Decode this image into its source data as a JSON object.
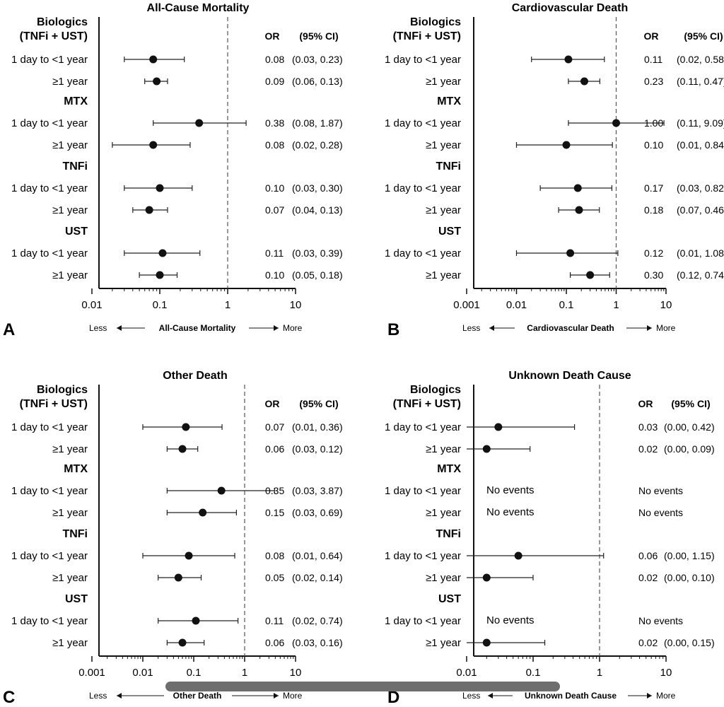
{
  "chart_data": [
    {
      "type": "forest",
      "panel_letter": "A",
      "title": "All-Cause Mortality",
      "xlabel": "All-Cause Mortality",
      "x_left_label": "Less",
      "x_right_label": "More",
      "x_scale": "log",
      "xlim": [
        0.01,
        10
      ],
      "x_ticks": [
        "0.01",
        "0.1",
        "1",
        "10"
      ],
      "reference_line": 1,
      "col_or": "OR",
      "col_ci": "(95% CI)",
      "groups": [
        {
          "name": "Biologics\n(TNFi + UST)",
          "rows": [
            {
              "label": "1 day to <1 year",
              "or": 0.08,
              "lo": 0.03,
              "hi": 0.23,
              "or_text": "0.08",
              "ci_text": "(0.03, 0.23)"
            },
            {
              "label": "≥1 year",
              "or": 0.09,
              "lo": 0.06,
              "hi": 0.13,
              "or_text": "0.09",
              "ci_text": "(0.06, 0.13)"
            }
          ]
        },
        {
          "name": "MTX",
          "rows": [
            {
              "label": "1 day to <1 year",
              "or": 0.38,
              "lo": 0.08,
              "hi": 1.87,
              "or_text": "0.38",
              "ci_text": "(0.08, 1.87)"
            },
            {
              "label": "≥1 year",
              "or": 0.08,
              "lo": 0.02,
              "hi": 0.28,
              "or_text": "0.08",
              "ci_text": "(0.02, 0.28)"
            }
          ]
        },
        {
          "name": "TNFi",
          "rows": [
            {
              "label": "1 day to <1 year",
              "or": 0.1,
              "lo": 0.03,
              "hi": 0.3,
              "or_text": "0.10",
              "ci_text": "(0.03, 0.30)"
            },
            {
              "label": "≥1 year",
              "or": 0.07,
              "lo": 0.04,
              "hi": 0.13,
              "or_text": "0.07",
              "ci_text": "(0.04, 0.13)"
            }
          ]
        },
        {
          "name": "UST",
          "rows": [
            {
              "label": "1 day to <1 year",
              "or": 0.11,
              "lo": 0.03,
              "hi": 0.39,
              "or_text": "0.11",
              "ci_text": "(0.03, 0.39)"
            },
            {
              "label": "≥1 year",
              "or": 0.1,
              "lo": 0.05,
              "hi": 0.18,
              "or_text": "0.10",
              "ci_text": "(0.05, 0.18)"
            }
          ]
        }
      ]
    },
    {
      "type": "forest",
      "panel_letter": "B",
      "title": "Cardiovascular Death",
      "xlabel": "Cardiovascular Death",
      "x_left_label": "Less",
      "x_right_label": "More",
      "x_scale": "log",
      "xlim": [
        0.001,
        10
      ],
      "x_ticks": [
        "0.001",
        "0.01",
        "0.1",
        "1",
        "10"
      ],
      "reference_line": 1,
      "col_or": "OR",
      "col_ci": "(95% CI)",
      "groups": [
        {
          "name": "Biologics\n(TNFi + UST)",
          "rows": [
            {
              "label": "1 day to <1 year",
              "or": 0.11,
              "lo": 0.02,
              "hi": 0.58,
              "or_text": "0.11",
              "ci_text": "(0.02, 0.58"
            },
            {
              "label": "≥1 year",
              "or": 0.23,
              "lo": 0.11,
              "hi": 0.47,
              "or_text": "0.23",
              "ci_text": "(0.11, 0.47)"
            }
          ]
        },
        {
          "name": "MTX",
          "rows": [
            {
              "label": "1 day to <1 year",
              "or": 1.0,
              "lo": 0.11,
              "hi": 9.09,
              "or_text": "1.00",
              "ci_text": "(0.11, 9.09)"
            },
            {
              "label": "≥1 year",
              "or": 0.1,
              "lo": 0.01,
              "hi": 0.84,
              "or_text": "0.10",
              "ci_text": "(0.01, 0.84)"
            }
          ]
        },
        {
          "name": "TNFi",
          "rows": [
            {
              "label": "1 day to <1 year",
              "or": 0.17,
              "lo": 0.03,
              "hi": 0.82,
              "or_text": "0.17",
              "ci_text": "(0.03, 0.82"
            },
            {
              "label": "≥1 year",
              "or": 0.18,
              "lo": 0.07,
              "hi": 0.46,
              "or_text": "0.18",
              "ci_text": "(0.07, 0.46)"
            }
          ]
        },
        {
          "name": "UST",
          "rows": [
            {
              "label": "1 day to <1 year",
              "or": 0.12,
              "lo": 0.01,
              "hi": 1.08,
              "or_text": "0.12",
              "ci_text": "(0.01, 1.08)"
            },
            {
              "label": "≥1 year",
              "or": 0.3,
              "lo": 0.12,
              "hi": 0.74,
              "or_text": "0.30",
              "ci_text": "(0.12, 0.74)"
            }
          ]
        }
      ]
    },
    {
      "type": "forest",
      "panel_letter": "C",
      "title": "Other Death",
      "xlabel": "Other Death",
      "x_left_label": "Less",
      "x_right_label": "More",
      "x_scale": "log",
      "xlim": [
        0.001,
        10
      ],
      "x_ticks": [
        "0.001",
        "0.01",
        "0.1",
        "1",
        "10"
      ],
      "reference_line": 1,
      "col_or": "OR",
      "col_ci": "(95% CI)",
      "groups": [
        {
          "name": "Biologics\n(TNFi + UST)",
          "rows": [
            {
              "label": "1 day to <1 year",
              "or": 0.07,
              "lo": 0.01,
              "hi": 0.36,
              "or_text": "0.07",
              "ci_text": "(0.01, 0.36)"
            },
            {
              "label": "≥1 year",
              "or": 0.06,
              "lo": 0.03,
              "hi": 0.12,
              "or_text": "0.06",
              "ci_text": "(0.03, 0.12)"
            }
          ]
        },
        {
          "name": "MTX",
          "rows": [
            {
              "label": "1 day to <1 year",
              "or": 0.35,
              "lo": 0.03,
              "hi": 3.87,
              "or_text": "0.35",
              "ci_text": "(0.03, 3.87)"
            },
            {
              "label": "≥1 year",
              "or": 0.15,
              "lo": 0.03,
              "hi": 0.69,
              "or_text": "0.15",
              "ci_text": "(0.03, 0.69)"
            }
          ]
        },
        {
          "name": "TNFi",
          "rows": [
            {
              "label": "1 day to <1 year",
              "or": 0.08,
              "lo": 0.01,
              "hi": 0.64,
              "or_text": "0.08",
              "ci_text": "(0.01, 0.64)"
            },
            {
              "label": "≥1 year",
              "or": 0.05,
              "lo": 0.02,
              "hi": 0.14,
              "or_text": "0.05",
              "ci_text": "(0.02, 0.14)"
            }
          ]
        },
        {
          "name": "UST",
          "rows": [
            {
              "label": "1 day to <1 year",
              "or": 0.11,
              "lo": 0.02,
              "hi": 0.74,
              "or_text": "0.11",
              "ci_text": "(0.02, 0.74)"
            },
            {
              "label": "≥1 year",
              "or": 0.06,
              "lo": 0.03,
              "hi": 0.16,
              "or_text": "0.06",
              "ci_text": "(0.03, 0.16)"
            }
          ]
        }
      ]
    },
    {
      "type": "forest",
      "panel_letter": "D",
      "title": "Unknown Death Cause",
      "xlabel": "Unknown Death Cause",
      "x_left_label": "Less",
      "x_right_label": "More",
      "x_scale": "log",
      "xlim": [
        0.01,
        10
      ],
      "x_ticks": [
        "0.01",
        "0.1",
        "1",
        "10"
      ],
      "reference_line": 1,
      "col_or": "OR",
      "col_ci": "(95% CI)",
      "groups": [
        {
          "name": "Biologics\n(TNFi + UST)",
          "rows": [
            {
              "label": "1 day to <1 year",
              "or": 0.03,
              "lo": 0.0,
              "hi": 0.42,
              "or_text": "0.03",
              "ci_text": "(0.00, 0.42)"
            },
            {
              "label": "≥1 year",
              "or": 0.02,
              "lo": 0.0,
              "hi": 0.09,
              "or_text": "0.02",
              "ci_text": "(0.00, 0.09)"
            }
          ]
        },
        {
          "name": "MTX",
          "rows": [
            {
              "label": "1 day to <1 year",
              "no_events": "No events",
              "or_text": "No events",
              "ci_text": ""
            },
            {
              "label": "≥1 year",
              "no_events": "No events",
              "or_text": "No events",
              "ci_text": ""
            }
          ]
        },
        {
          "name": "TNFi",
          "rows": [
            {
              "label": "1 day to <1 year",
              "or": 0.06,
              "lo": 0.0,
              "hi": 1.15,
              "or_text": "0.06",
              "ci_text": "(0.00, 1.15)"
            },
            {
              "label": "≥1 year",
              "or": 0.02,
              "lo": 0.0,
              "hi": 0.1,
              "or_text": "0.02",
              "ci_text": "(0.00, 0.10)"
            }
          ]
        },
        {
          "name": "UST",
          "rows": [
            {
              "label": "1 day to <1 year",
              "no_events": "No events",
              "or_text": "No events",
              "ci_text": ""
            },
            {
              "label": "≥1 year",
              "or": 0.02,
              "lo": 0.0,
              "hi": 0.15,
              "or_text": "0.02",
              "ci_text": "(0.00, 0.15)"
            }
          ]
        }
      ]
    }
  ]
}
